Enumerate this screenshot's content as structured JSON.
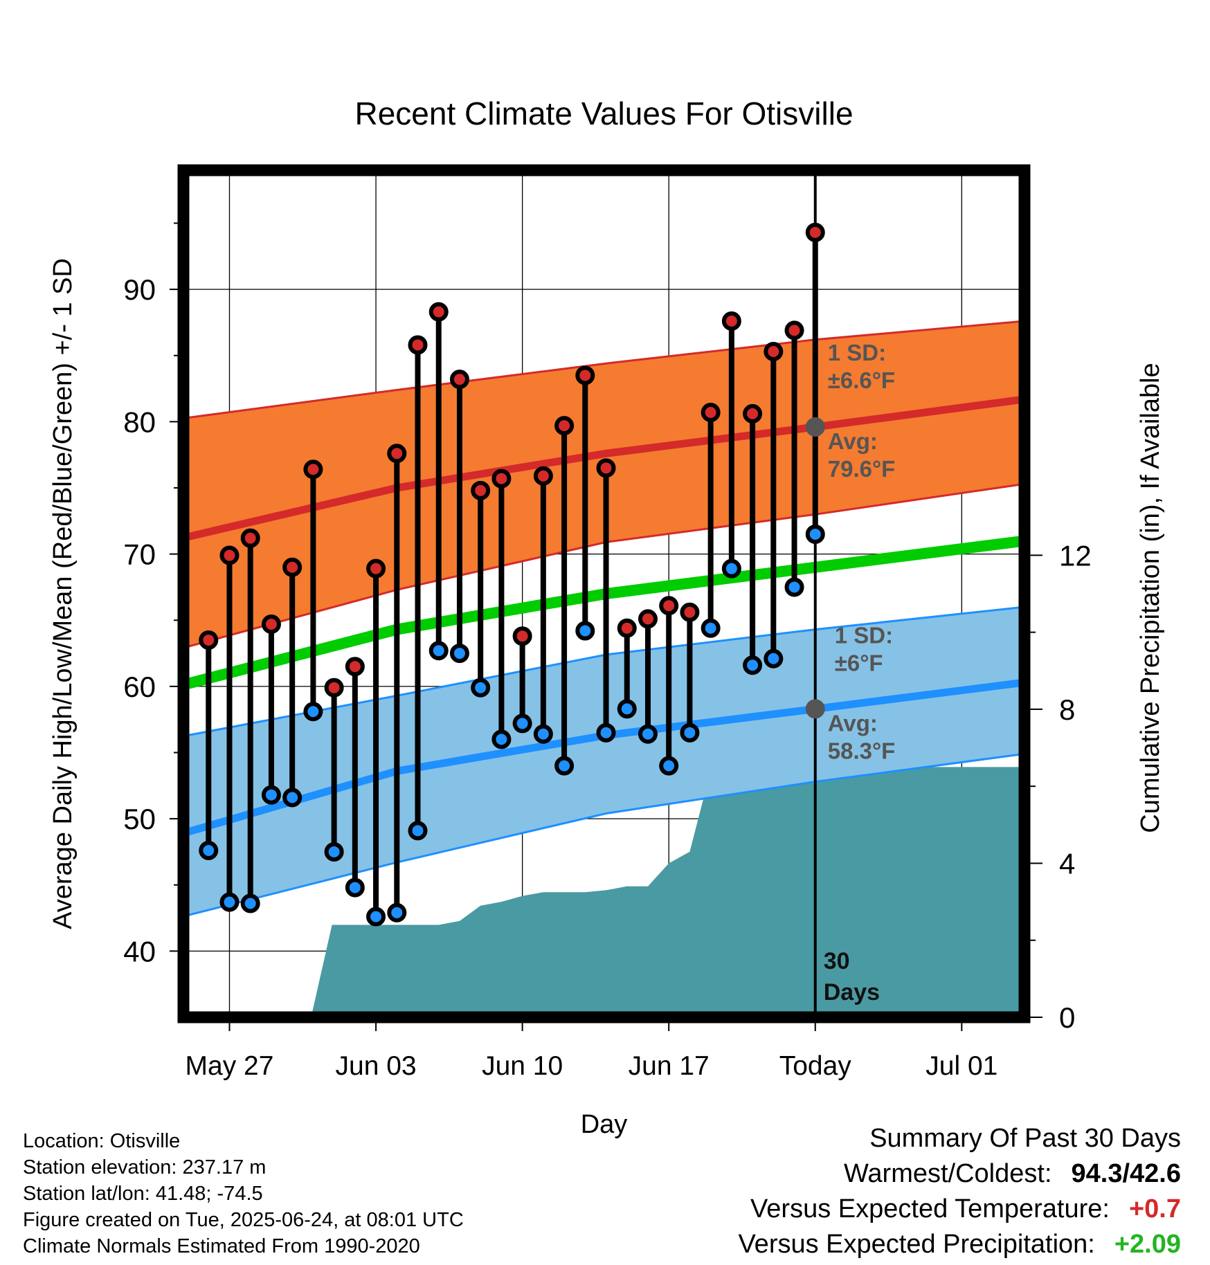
{
  "chart_data": {
    "type": "line",
    "title": "Recent Climate Values For Otisville",
    "xlabel": "Day",
    "ylabel": "Average Daily High/Low/Mean (Red/Blue/Green) +/- 1 SD",
    "y2label": "Cumulative Precipitation (in), If Available",
    "x_tick_labels": [
      "May 27",
      "Jun 03",
      "Jun 10",
      "Jun 17",
      "Today",
      "Jul 01"
    ],
    "x_tick_days": [
      2,
      9,
      16,
      23,
      30,
      37
    ],
    "xlim": [
      -0.2,
      40
    ],
    "ylim": [
      35,
      99
    ],
    "y_ticks": [
      40,
      50,
      60,
      70,
      80,
      90
    ],
    "y2lim": [
      0,
      22
    ],
    "y2_ticks": [
      0,
      4,
      8,
      12
    ],
    "grid": true,
    "colors": {
      "high": "#d42a2a",
      "high_band": "#f47b30",
      "low": "#1e90ff",
      "low_band": "#86c2e6",
      "mean": "#00cc00",
      "precip": "#4a9aa3",
      "marker_high": "#d42a2a",
      "marker_low": "#1e90ff",
      "avg_point": "#555555",
      "positive_temp": "#d42a2a",
      "positive_precip": "#22b522"
    },
    "today_day": 30,
    "today_label": "30 Days",
    "normals": {
      "days": [
        0,
        10,
        20,
        30,
        40
      ],
      "high_avg": [
        71.3,
        75.0,
        77.6,
        79.6,
        81.7
      ],
      "high_upper": [
        80.3,
        82.4,
        84.4,
        86.2,
        87.6
      ],
      "high_lower": [
        63.0,
        67.3,
        70.9,
        73.0,
        75.3
      ],
      "high_sd_label": "1 SD:",
      "high_sd_value": "±6.6°F",
      "high_avg_label": "Avg:",
      "high_avg_value": "79.6°F",
      "low_avg": [
        49.0,
        53.6,
        56.3,
        58.3,
        60.3
      ],
      "low_upper": [
        56.3,
        59.3,
        62.4,
        64.3,
        66.0
      ],
      "low_lower": [
        42.7,
        46.7,
        50.4,
        52.8,
        54.9
      ],
      "low_sd_label": "1 SD:",
      "low_sd_value": "±6°F",
      "low_avg_label": "Avg:",
      "low_avg_value": "58.3°F",
      "mean": [
        60.2,
        64.3,
        67.0,
        69.0,
        71.0
      ]
    },
    "observations": [
      {
        "day": 1,
        "high": 63.5,
        "low": 47.6
      },
      {
        "day": 2,
        "high": 69.9,
        "low": 43.7
      },
      {
        "day": 3,
        "high": 71.2,
        "low": 43.6
      },
      {
        "day": 4,
        "high": 64.7,
        "low": 51.8
      },
      {
        "day": 5,
        "high": 69.0,
        "low": 51.6
      },
      {
        "day": 6,
        "high": 76.4,
        "low": 58.1
      },
      {
        "day": 7,
        "high": 59.9,
        "low": 47.5
      },
      {
        "day": 8,
        "high": 61.5,
        "low": 44.8
      },
      {
        "day": 9,
        "high": 68.9,
        "low": 42.6
      },
      {
        "day": 10,
        "high": 77.6,
        "low": 42.9
      },
      {
        "day": 11,
        "high": 85.8,
        "low": 49.1
      },
      {
        "day": 12,
        "high": 88.3,
        "low": 62.7
      },
      {
        "day": 13,
        "high": 83.2,
        "low": 62.5
      },
      {
        "day": 14,
        "high": 74.8,
        "low": 59.9
      },
      {
        "day": 15,
        "high": 75.7,
        "low": 56.0
      },
      {
        "day": 16,
        "high": 63.8,
        "low": 57.2
      },
      {
        "day": 17,
        "high": 75.9,
        "low": 56.4
      },
      {
        "day": 18,
        "high": 79.7,
        "low": 54.0
      },
      {
        "day": 19,
        "high": 83.5,
        "low": 64.2
      },
      {
        "day": 20,
        "high": 76.5,
        "low": 56.5
      },
      {
        "day": 21,
        "high": 64.4,
        "low": 58.3
      },
      {
        "day": 22,
        "high": 65.1,
        "low": 56.4
      },
      {
        "day": 23,
        "high": 66.1,
        "low": 54.0
      },
      {
        "day": 24,
        "high": 65.6,
        "low": 56.5
      },
      {
        "day": 25,
        "high": 80.7,
        "low": 64.4
      },
      {
        "day": 26,
        "high": 87.6,
        "low": 68.9
      },
      {
        "day": 27,
        "high": 80.6,
        "low": 61.6
      },
      {
        "day": 28,
        "high": 85.3,
        "low": 62.1
      },
      {
        "day": 29,
        "high": 86.9,
        "low": 67.5
      },
      {
        "day": 30,
        "high": 94.3,
        "low": 71.5
      }
    ],
    "precipitation_cumulative": {
      "days": [
        5.9,
        6.9,
        7.5,
        12.0,
        13.0,
        14.0,
        15.0,
        16.0,
        17.0,
        18.0,
        19.0,
        20.0,
        21.0,
        22.0,
        23.0,
        24.0,
        25.0,
        27.0,
        28.0,
        29.0,
        30.0,
        35.0,
        40.0
      ],
      "values": [
        0.0,
        2.4,
        2.4,
        2.4,
        2.5,
        2.9,
        3.0,
        3.15,
        3.25,
        3.25,
        3.25,
        3.3,
        3.4,
        3.4,
        4.0,
        4.3,
        6.4,
        6.4,
        6.45,
        6.5,
        6.5,
        6.5,
        6.5
      ]
    }
  },
  "info": {
    "location": "Location: Otisville",
    "elevation": "Station elevation: 237.17 m",
    "latlon": "Station lat/lon: 41.48; -74.5",
    "created": "Figure created on Tue, 2025-06-24, at 08:01 UTC",
    "normals": "Climate Normals Estimated From 1990-2020"
  },
  "summary": {
    "heading": "Summary Of Past 30 Days",
    "warm_cold_label": "Warmest/Coldest:",
    "warm_cold_value": "94.3/42.6",
    "temp_label": "Versus Expected Temperature:",
    "temp_value": "+0.7",
    "precip_label": "Versus Expected Precipitation:",
    "precip_value": "+2.09"
  }
}
